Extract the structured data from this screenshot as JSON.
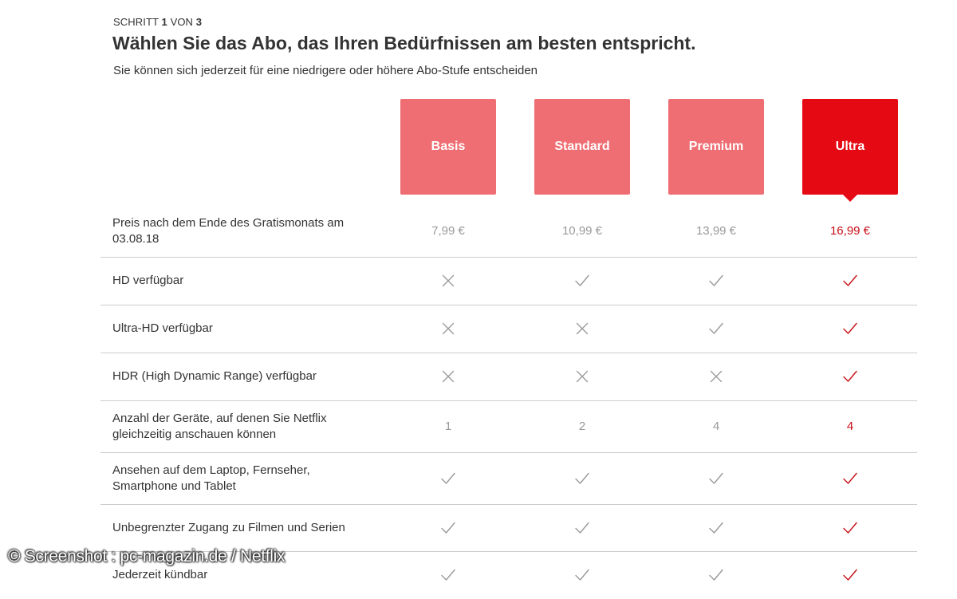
{
  "header": {
    "step_prefix": "SCHRITT",
    "step_current": "1",
    "step_of": "VON",
    "step_total": "3",
    "title": "Wählen Sie das Abo, das Ihren Bedürfnissen am besten entspricht.",
    "subtitle": "Sie können sich jederzeit für eine niedrigere oder höhere Abo-Stufe entscheiden"
  },
  "plans": [
    {
      "label": "Basis",
      "selected": false
    },
    {
      "label": "Standard",
      "selected": false
    },
    {
      "label": "Premium",
      "selected": false
    },
    {
      "label": "Ultra",
      "selected": true
    }
  ],
  "colors": {
    "plan_unselected": "#ef6e73",
    "plan_selected": "#e50914",
    "selected_text": "#c70f17",
    "muted_text": "#999999",
    "divider": "#cccccc"
  },
  "rows": [
    {
      "label": "Preis nach dem Ende des Gratismonats am 03.08.18",
      "type": "text",
      "values": [
        "7,99 €",
        "10,99 €",
        "13,99 €",
        "16,99 €"
      ]
    },
    {
      "label": "HD verfügbar",
      "type": "icon",
      "values": [
        "cross-icon",
        "check-icon",
        "check-icon",
        "check-icon"
      ]
    },
    {
      "label": "Ultra-HD verfügbar",
      "type": "icon",
      "values": [
        "cross-icon",
        "cross-icon",
        "check-icon",
        "check-icon"
      ]
    },
    {
      "label": "HDR (High Dynamic Range) verfügbar",
      "type": "icon",
      "values": [
        "cross-icon",
        "cross-icon",
        "cross-icon",
        "check-icon"
      ]
    },
    {
      "label": "Anzahl der Geräte, auf denen Sie Netflix gleichzeitig anschauen können",
      "type": "text",
      "values": [
        "1",
        "2",
        "4",
        "4"
      ]
    },
    {
      "label": "Ansehen auf dem Laptop, Fernseher, Smartphone und Tablet",
      "type": "icon",
      "values": [
        "check-icon",
        "check-icon",
        "check-icon",
        "check-icon"
      ]
    },
    {
      "label": "Unbegrenzter Zugang zu Filmen und Serien",
      "type": "icon",
      "values": [
        "check-icon",
        "check-icon",
        "check-icon",
        "check-icon"
      ]
    },
    {
      "label": "Jederzeit kündbar",
      "type": "icon",
      "values": [
        "check-icon",
        "check-icon",
        "check-icon",
        "check-icon"
      ]
    }
  ],
  "watermark": "© Screenshot : pc-magazin.de / Netflix"
}
